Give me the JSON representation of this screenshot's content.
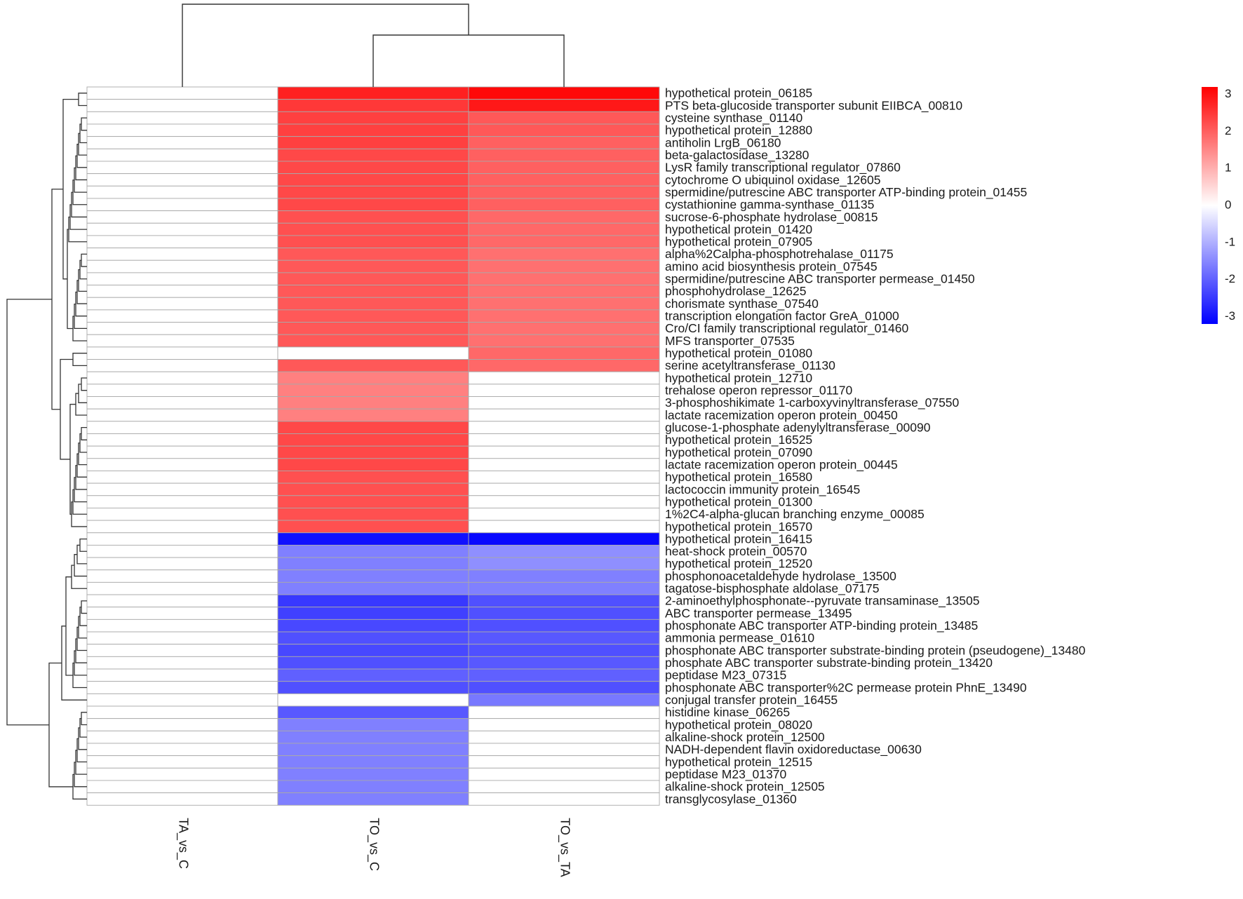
{
  "chart_data": {
    "type": "heatmap",
    "title": "",
    "columns": [
      "TA_vs_C",
      "TO_vs_C",
      "TO_vs_TA"
    ],
    "rows": [
      {
        "label": "hypothetical protein_06185",
        "values": [
          0,
          2.8,
          3.1
        ]
      },
      {
        "label": "PTS beta-glucoside transporter subunit EIIBCA_00810",
        "values": [
          0,
          2.5,
          2.9
        ]
      },
      {
        "label": "cysteine synthase_01140",
        "values": [
          0,
          2.4,
          2.1
        ]
      },
      {
        "label": "hypothetical protein_12880",
        "values": [
          0,
          2.4,
          2.1
        ]
      },
      {
        "label": "antiholin LrgB_06180",
        "values": [
          0,
          2.4,
          2.0
        ]
      },
      {
        "label": "beta-galactosidase_13280",
        "values": [
          0,
          2.3,
          2.0
        ]
      },
      {
        "label": "LysR family transcriptional regulator_07860",
        "values": [
          0,
          2.3,
          2.0
        ]
      },
      {
        "label": "cytochrome O ubiquinol oxidase_12605",
        "values": [
          0,
          2.3,
          2.0
        ]
      },
      {
        "label": "spermidine/putrescine ABC transporter ATP-binding protein_01455",
        "values": [
          0,
          2.3,
          2.0
        ]
      },
      {
        "label": "cystathionine gamma-synthase_01135",
        "values": [
          0,
          2.3,
          2.0
        ]
      },
      {
        "label": "sucrose-6-phosphate hydrolase_00815",
        "values": [
          0,
          2.2,
          1.9
        ]
      },
      {
        "label": "hypothetical protein_01420",
        "values": [
          0,
          2.2,
          1.9
        ]
      },
      {
        "label": "hypothetical protein_07905",
        "values": [
          0,
          2.2,
          1.9
        ]
      },
      {
        "label": "alpha%2Calpha-phosphotrehalase_01175",
        "values": [
          0,
          2.1,
          1.8
        ]
      },
      {
        "label": "amino acid biosynthesis protein_07545",
        "values": [
          0,
          2.1,
          1.8
        ]
      },
      {
        "label": "spermidine/putrescine ABC transporter permease_01450",
        "values": [
          0,
          2.1,
          1.8
        ]
      },
      {
        "label": "phosphohydrolase_12625",
        "values": [
          0,
          2.1,
          1.8
        ]
      },
      {
        "label": "chorismate synthase_07540",
        "values": [
          0,
          2.1,
          1.8
        ]
      },
      {
        "label": "transcription elongation factor GreA_01000",
        "values": [
          0,
          2.1,
          1.8
        ]
      },
      {
        "label": "Cro/CI family transcriptional regulator_01460",
        "values": [
          0,
          2.1,
          1.8
        ]
      },
      {
        "label": "MFS transporter_07535",
        "values": [
          0,
          2.1,
          1.8
        ]
      },
      {
        "label": "hypothetical protein_01080",
        "values": [
          0,
          0,
          1.9
        ]
      },
      {
        "label": "serine acetyltransferase_01130",
        "values": [
          0,
          2.1,
          1.9
        ]
      },
      {
        "label": "hypothetical protein_12710",
        "values": [
          0,
          1.6,
          0
        ]
      },
      {
        "label": "trehalose operon repressor_01170",
        "values": [
          0,
          1.6,
          0
        ]
      },
      {
        "label": "3-phosphoshikimate 1-carboxyvinyltransferase_07550",
        "values": [
          0,
          1.6,
          0
        ]
      },
      {
        "label": "lactate racemization operon protein_00450",
        "values": [
          0,
          1.6,
          0
        ]
      },
      {
        "label": "glucose-1-phosphate adenylyltransferase_00090",
        "values": [
          0,
          2.3,
          0
        ]
      },
      {
        "label": "hypothetical protein_16525",
        "values": [
          0,
          2.3,
          0
        ]
      },
      {
        "label": "hypothetical protein_07090",
        "values": [
          0,
          2.3,
          0
        ]
      },
      {
        "label": "lactate racemization operon protein_00445",
        "values": [
          0,
          2.3,
          0
        ]
      },
      {
        "label": "hypothetical protein_16580",
        "values": [
          0,
          2.2,
          0
        ]
      },
      {
        "label": "lactococcin immunity protein_16545",
        "values": [
          0,
          2.2,
          0
        ]
      },
      {
        "label": "hypothetical protein_01300",
        "values": [
          0,
          2.2,
          0
        ]
      },
      {
        "label": "1%2C4-alpha-glucan branching enzyme_00085",
        "values": [
          0,
          2.2,
          0
        ]
      },
      {
        "label": "hypothetical protein_16570",
        "values": [
          0,
          2.2,
          0
        ]
      },
      {
        "label": "hypothetical protein_16415",
        "values": [
          0,
          -3.0,
          -3.1
        ]
      },
      {
        "label": "heat-shock protein_00570",
        "values": [
          0,
          -1.6,
          -1.4
        ]
      },
      {
        "label": "hypothetical protein_12520",
        "values": [
          0,
          -1.6,
          -1.4
        ]
      },
      {
        "label": "phosphonoacetaldehyde hydrolase_13500",
        "values": [
          0,
          -1.6,
          -1.6
        ]
      },
      {
        "label": "tagatose-bisphosphate aldolase_07175",
        "values": [
          0,
          -1.6,
          -1.6
        ]
      },
      {
        "label": "2-aminoethylphosphonate--pyruvate transaminase_13505",
        "values": [
          0,
          -2.5,
          -2.2
        ]
      },
      {
        "label": "ABC transporter permease_13495",
        "values": [
          0,
          -2.4,
          -2.2
        ]
      },
      {
        "label": "phosphonate ABC transporter ATP-binding protein_13485",
        "values": [
          0,
          -2.3,
          -2.2
        ]
      },
      {
        "label": "ammonia permease_01610",
        "values": [
          0,
          -2.2,
          -2.1
        ]
      },
      {
        "label": "phosphonate ABC transporter substrate-binding protein (pseudogene)_13480",
        "values": [
          0,
          -2.3,
          -2.2
        ]
      },
      {
        "label": "phosphate ABC transporter substrate-binding protein_13420",
        "values": [
          0,
          -2.2,
          -2.1
        ]
      },
      {
        "label": "peptidase M23_07315",
        "values": [
          0,
          -2.0,
          -2.0
        ]
      },
      {
        "label": "phosphonate ABC transporter%2C permease protein PhnE_13490",
        "values": [
          0,
          -2.2,
          -2.2
        ]
      },
      {
        "label": "conjugal transfer protein_16455",
        "values": [
          0,
          0,
          -1.7
        ]
      },
      {
        "label": "histidine kinase_06265",
        "values": [
          0,
          -2.1,
          0
        ]
      },
      {
        "label": "hypothetical protein_08020",
        "values": [
          0,
          -1.6,
          0
        ]
      },
      {
        "label": "alkaline-shock protein_12500",
        "values": [
          0,
          -1.6,
          0
        ]
      },
      {
        "label": "NADH-dependent flavin oxidoreductase_00630",
        "values": [
          0,
          -1.6,
          0
        ]
      },
      {
        "label": "hypothetical protein_12515",
        "values": [
          0,
          -1.6,
          0
        ]
      },
      {
        "label": "peptidase M23_01370",
        "values": [
          0,
          -1.6,
          0
        ]
      },
      {
        "label": "alkaline-shock protein_12505",
        "values": [
          0,
          -1.6,
          0
        ]
      },
      {
        "label": "transglycosylase_01360",
        "values": [
          0,
          -1.6,
          0
        ]
      }
    ],
    "color_scale": {
      "min": -3.2,
      "max": 3.2,
      "low_color": "#0000ff",
      "mid_color": "#ffffff",
      "high_color": "#ff0000",
      "ticks": [
        3,
        2,
        1,
        0,
        -1,
        -2,
        -3
      ]
    },
    "column_dendrogram": [
      [
        1,
        2
      ],
      [
        0,
        [
          1,
          2
        ]
      ]
    ],
    "row_dendrogram": "hierarchical clustering tree on the left"
  }
}
